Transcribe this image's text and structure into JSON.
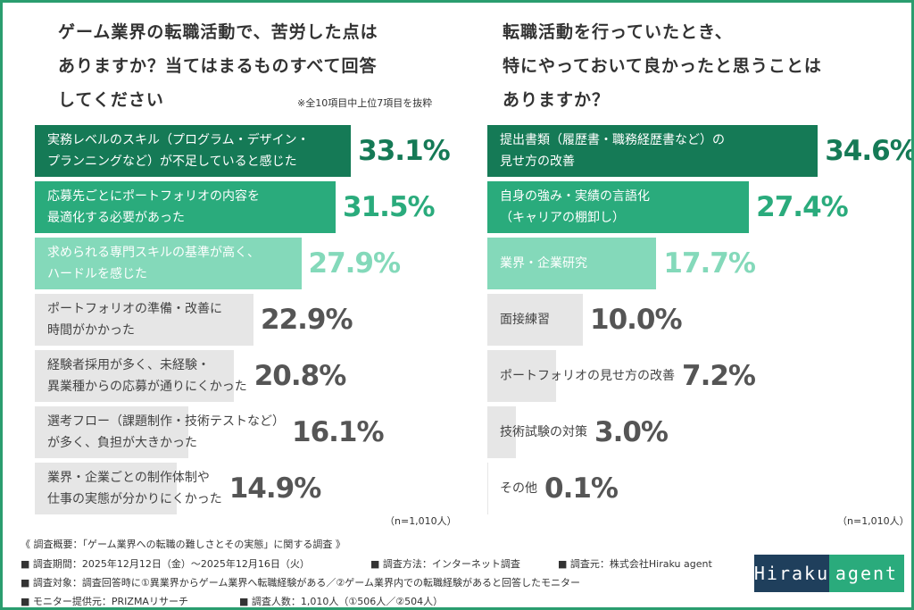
{
  "chart_data": [
    {
      "type": "bar",
      "title": "ゲーム業界の転職活動で、苦労した点は\nありますか？当てはまるものすべて回答\nしてください",
      "note": "※全10項目中上位7項目を抜粋",
      "sample_size": "（n=1,010人）",
      "categories": [
        "実務レベルのスキル（プログラム・デザイン・\nプランニングなど）が不足していると感じた",
        "応募先ごとにポートフォリオの内容を\n最適化する必要があった",
        "求められる専門スキルの基準が高く、\nハードルを感じた",
        "ポートフォリオの準備・改善に\n時間がかかった",
        "経験者採用が多く、未経験・\n異業種からの応募が通りにくかった",
        "選考フロー（課題制作・技術テストなど）\nが多く、負担が大きかった",
        "業界・企業ごとの制作体制や\n仕事の実態が分かりにくかった"
      ],
      "values": [
        33.1,
        31.5,
        27.9,
        22.9,
        20.8,
        16.1,
        14.9
      ],
      "value_labels": [
        "33.1%",
        "31.5%",
        "27.9%",
        "22.9%",
        "20.8%",
        "16.1%",
        "14.9%"
      ],
      "colors": [
        "#157a56",
        "#2aab7c",
        "#84d9ba",
        "#e6e6e6",
        "#e6e6e6",
        "#e6e6e6",
        "#e6e6e6"
      ]
    },
    {
      "type": "bar",
      "title": "転職活動を行っていたとき、\n特にやっておいて良かったと思うことは\nありますか？",
      "sample_size": "（n=1,010人）",
      "categories": [
        "提出書類（履歴書・職務経歴書など）の\n見せ方の改善",
        "自身の強み・実績の言語化\n（キャリアの棚卸し）",
        "業界・企業研究",
        "面接練習",
        "ポートフォリオの見せ方の改善",
        "技術試験の対策",
        "その他"
      ],
      "values": [
        34.6,
        27.4,
        17.7,
        10.0,
        7.2,
        3.0,
        0.1
      ],
      "value_labels": [
        "34.6%",
        "27.4%",
        "17.7%",
        "10.0%",
        "7.2%",
        "3.0%",
        "0.1%"
      ],
      "colors": [
        "#157a56",
        "#2aab7c",
        "#84d9ba",
        "#e6e6e6",
        "#e6e6e6",
        "#e6e6e6",
        "#e6e6e6"
      ]
    }
  ],
  "survey": {
    "heading": "《 調査概要：「ゲーム業界への転職の難しさとその実態」に関する調査 》",
    "items": [
      "■ 調査期間：2025年12月12日（金）～2025年12月16日（火）",
      "■ 調査方法：インターネット調査",
      "■ 調査元：株式会社Hiraku agent",
      "■ 調査対象：調査回答時に①異業界からゲーム業界へ転職経験がある／②ゲーム業界内での転職経験があると回答したモニター",
      "■ モニター提供元：PRIZMAリサーチ",
      "■ 調査人数：1,010人（①506人／②504人）"
    ]
  },
  "logo": [
    "Hiraku",
    "agent"
  ]
}
